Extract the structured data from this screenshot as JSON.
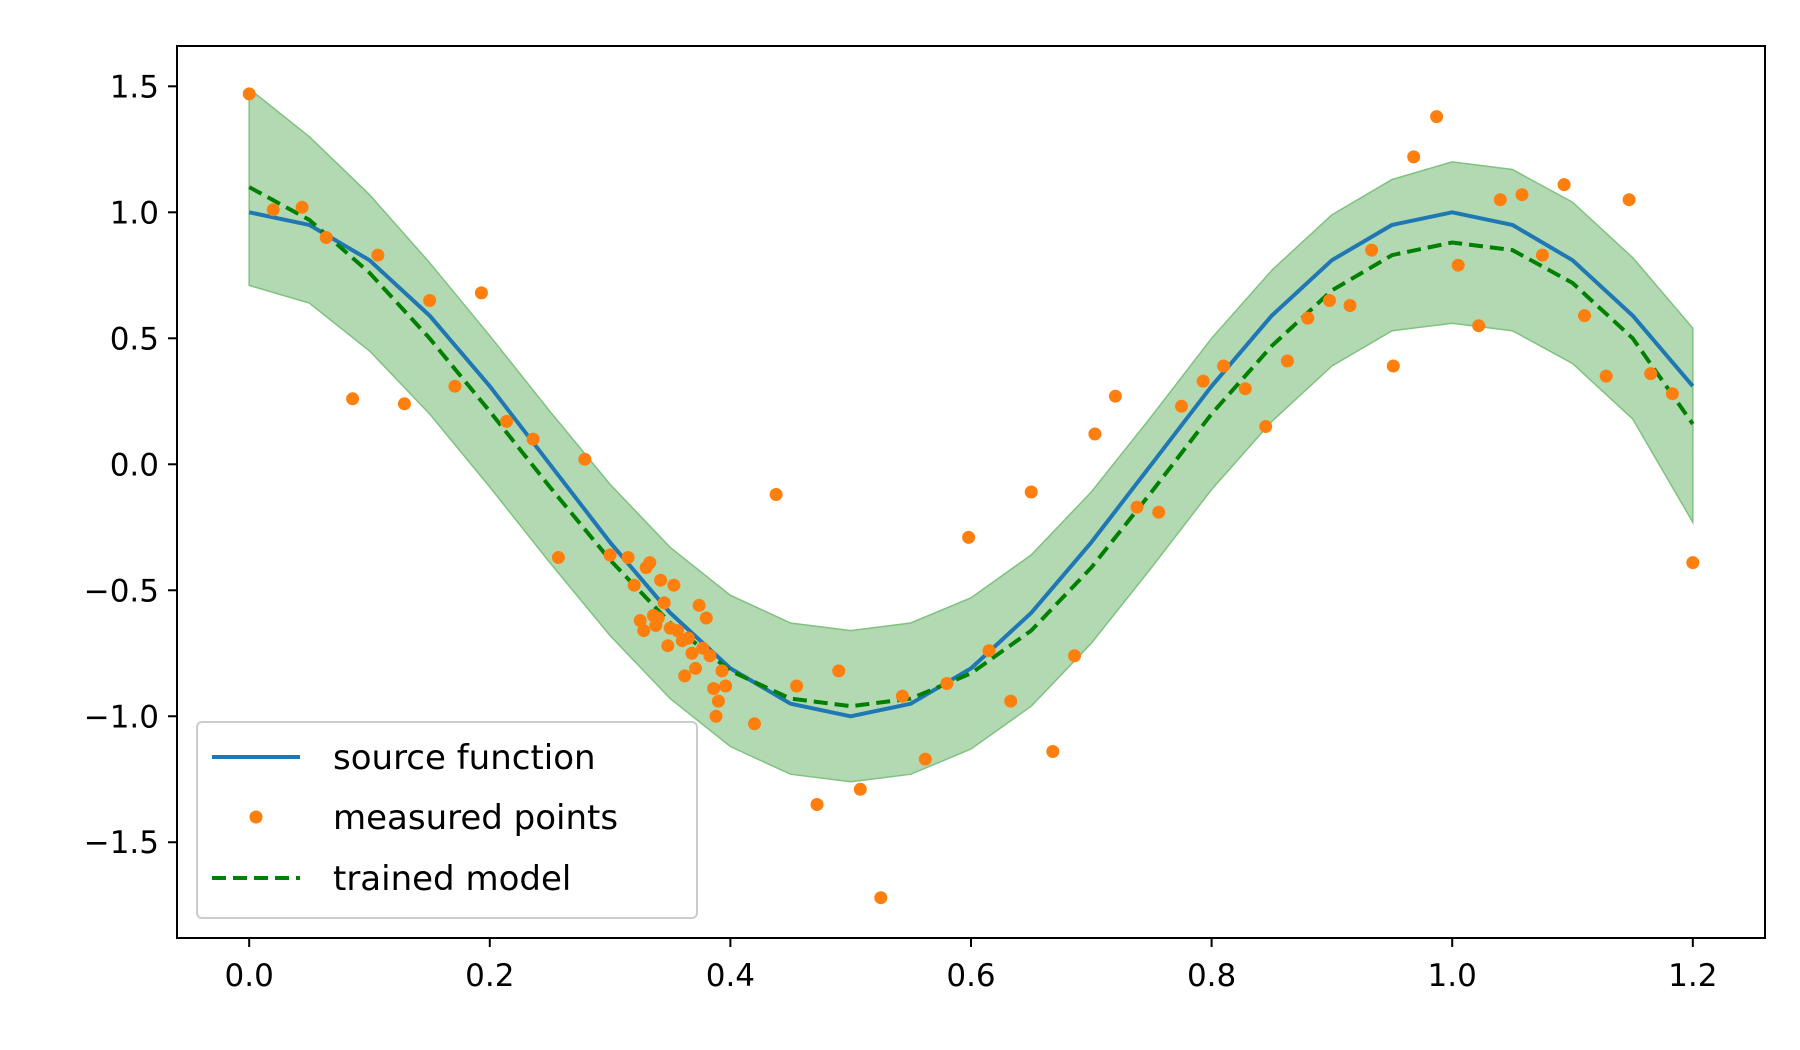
{
  "chart_data": {
    "type": "line",
    "title": "",
    "xlabel": "",
    "ylabel": "",
    "xlim": [
      -0.06,
      1.26
    ],
    "ylim": [
      -1.88,
      1.66
    ],
    "xticks": [
      0.0,
      0.2,
      0.4,
      0.6,
      0.8,
      1.0,
      1.2
    ],
    "xtick_labels": [
      "0.0",
      "0.2",
      "0.4",
      "0.6",
      "0.8",
      "1.0",
      "1.2"
    ],
    "yticks": [
      1.5,
      1.0,
      0.5,
      0.0,
      -0.5,
      -1.0,
      -1.5
    ],
    "ytick_labels": [
      "1.5",
      "1.0",
      "0.5",
      "0.0",
      "−0.5",
      "−1.0",
      "−1.5"
    ],
    "grid": false,
    "legend_position": "lower-left",
    "colors": {
      "source": "#1f77b4",
      "points": "#ff7f0e",
      "model": "#008000",
      "band_fill": "#b2d9b2",
      "band_edge": "#7fc27f"
    },
    "series": [
      {
        "name": "source function",
        "style": "solid-line",
        "x": [
          0.0,
          0.05,
          0.1,
          0.15,
          0.2,
          0.25,
          0.3,
          0.35,
          0.4,
          0.45,
          0.5,
          0.55,
          0.6,
          0.65,
          0.7,
          0.75,
          0.8,
          0.85,
          0.9,
          0.95,
          1.0,
          1.05,
          1.1,
          1.15,
          1.2
        ],
        "y": [
          1.0,
          0.95,
          0.81,
          0.59,
          0.31,
          0.0,
          -0.31,
          -0.59,
          -0.81,
          -0.95,
          -1.0,
          -0.95,
          -0.81,
          -0.59,
          -0.31,
          0.0,
          0.31,
          0.59,
          0.81,
          0.95,
          1.0,
          0.95,
          0.81,
          0.59,
          0.31
        ]
      },
      {
        "name": "measured points",
        "style": "markers",
        "x": [
          0.0,
          0.02,
          0.044,
          0.064,
          0.086,
          0.107,
          0.129,
          0.15,
          0.171,
          0.193,
          0.214,
          0.236,
          0.257,
          0.279,
          0.3,
          0.315,
          0.32,
          0.325,
          0.328,
          0.33,
          0.333,
          0.336,
          0.338,
          0.34,
          0.342,
          0.345,
          0.348,
          0.35,
          0.353,
          0.356,
          0.36,
          0.362,
          0.365,
          0.368,
          0.371,
          0.374,
          0.377,
          0.38,
          0.383,
          0.386,
          0.388,
          0.39,
          0.393,
          0.396,
          0.42,
          0.438,
          0.455,
          0.472,
          0.49,
          0.508,
          0.525,
          0.543,
          0.562,
          0.58,
          0.598,
          0.615,
          0.633,
          0.65,
          0.668,
          0.686,
          0.703,
          0.72,
          0.738,
          0.756,
          0.775,
          0.793,
          0.81,
          0.828,
          0.845,
          0.863,
          0.88,
          0.898,
          0.915,
          0.933,
          0.951,
          0.968,
          0.987,
          1.005,
          1.022,
          1.04,
          1.058,
          1.075,
          1.093,
          1.11,
          1.128,
          1.147,
          1.165,
          1.183,
          1.2
        ],
        "y": [
          1.47,
          1.01,
          1.02,
          0.9,
          0.26,
          0.83,
          0.24,
          0.65,
          0.31,
          0.68,
          0.17,
          0.1,
          -0.37,
          0.02,
          -0.36,
          -0.37,
          -0.48,
          -0.62,
          -0.66,
          -0.41,
          -0.39,
          -0.6,
          -0.64,
          -0.61,
          -0.46,
          -0.55,
          -0.72,
          -0.65,
          -0.48,
          -0.66,
          -0.7,
          -0.84,
          -0.69,
          -0.75,
          -0.81,
          -0.56,
          -0.73,
          -0.61,
          -0.76,
          -0.89,
          -1.0,
          -0.94,
          -0.82,
          -0.88,
          -1.03,
          -0.12,
          -0.88,
          -1.35,
          -0.82,
          -1.29,
          -1.72,
          -0.92,
          -1.17,
          -0.87,
          -0.29,
          -0.74,
          -0.94,
          -0.11,
          -1.14,
          -0.76,
          0.12,
          0.27,
          -0.17,
          -0.19,
          0.23,
          0.33,
          0.39,
          0.3,
          0.15,
          0.41,
          0.58,
          0.65,
          0.63,
          0.85,
          0.39,
          1.22,
          1.38,
          0.79,
          0.55,
          1.05,
          1.07,
          0.83,
          1.11,
          0.59,
          0.35,
          1.05,
          0.36,
          0.28,
          -0.39
        ]
      },
      {
        "name": "trained model",
        "style": "dashed-line",
        "x": [
          0.0,
          0.05,
          0.1,
          0.15,
          0.2,
          0.25,
          0.3,
          0.35,
          0.4,
          0.45,
          0.5,
          0.55,
          0.6,
          0.65,
          0.7,
          0.75,
          0.8,
          0.85,
          0.9,
          0.95,
          1.0,
          1.05,
          1.1,
          1.15,
          1.2
        ],
        "y": [
          1.1,
          0.97,
          0.76,
          0.5,
          0.21,
          -0.09,
          -0.38,
          -0.63,
          -0.82,
          -0.93,
          -0.96,
          -0.93,
          -0.83,
          -0.66,
          -0.41,
          -0.11,
          0.2,
          0.47,
          0.69,
          0.83,
          0.88,
          0.85,
          0.72,
          0.5,
          0.16
        ]
      }
    ],
    "confidence_band": {
      "x": [
        0.0,
        0.05,
        0.1,
        0.15,
        0.2,
        0.25,
        0.3,
        0.35,
        0.4,
        0.45,
        0.5,
        0.55,
        0.6,
        0.65,
        0.7,
        0.75,
        0.8,
        0.85,
        0.9,
        0.95,
        1.0,
        1.05,
        1.1,
        1.15,
        1.2
      ],
      "upper": [
        1.49,
        1.3,
        1.07,
        0.8,
        0.51,
        0.21,
        -0.08,
        -0.33,
        -0.52,
        -0.63,
        -0.66,
        -0.63,
        -0.53,
        -0.36,
        -0.11,
        0.19,
        0.5,
        0.77,
        0.99,
        1.13,
        1.2,
        1.17,
        1.04,
        0.82,
        0.54
      ],
      "lower": [
        0.71,
        0.64,
        0.45,
        0.2,
        -0.09,
        -0.39,
        -0.68,
        -0.93,
        -1.12,
        -1.23,
        -1.26,
        -1.23,
        -1.13,
        -0.96,
        -0.71,
        -0.41,
        -0.1,
        0.17,
        0.39,
        0.53,
        0.56,
        0.53,
        0.4,
        0.18,
        -0.23
      ]
    },
    "legend": {
      "entries": [
        "source function",
        "measured points",
        "trained model"
      ]
    }
  }
}
